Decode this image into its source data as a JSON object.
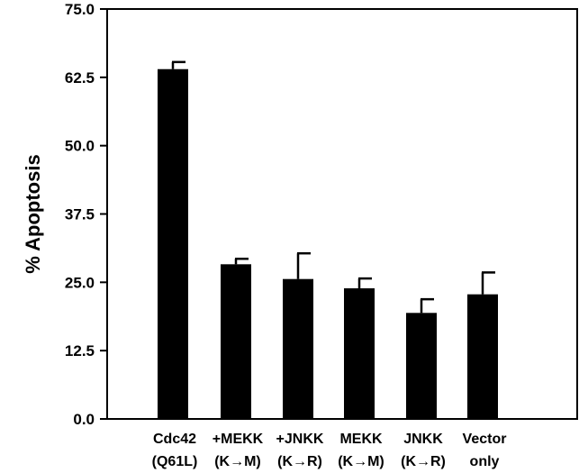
{
  "chart_data": {
    "type": "bar",
    "title": "",
    "xlabel": "",
    "ylabel": "% Apoptosis",
    "ylim": [
      0,
      75
    ],
    "yticks": [
      "0.0",
      "12.5",
      "25.0",
      "37.5",
      "50.0",
      "62.5",
      "75.0"
    ],
    "categories": [
      [
        "Cdc42",
        "(Q61L)"
      ],
      [
        "+MEKK",
        "(K→M)"
      ],
      [
        "+JNKK",
        "(K→R)"
      ],
      [
        "MEKK",
        "(K→M)"
      ],
      [
        "JNKK",
        "(K→R)"
      ],
      [
        "Vector",
        "only"
      ]
    ],
    "series": [
      {
        "values": [
          64.0,
          28.3,
          25.6,
          23.9,
          19.4,
          22.8
        ],
        "errors": [
          1.3,
          1.0,
          4.7,
          1.8,
          2.5,
          4.0
        ]
      }
    ],
    "grid": false,
    "bar_color": "#000000"
  }
}
